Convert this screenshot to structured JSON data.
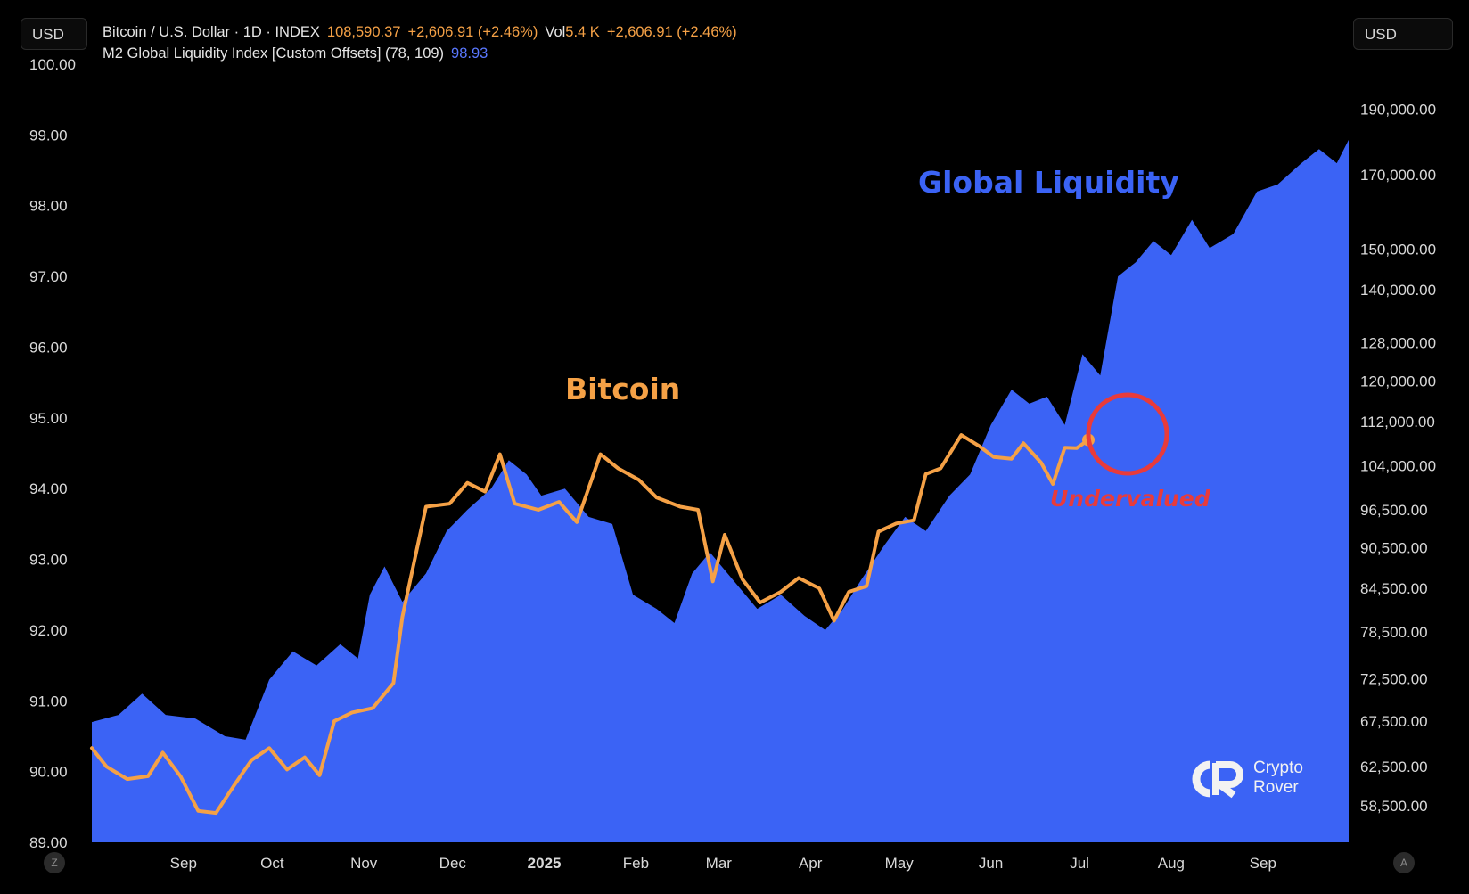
{
  "scale_buttons": {
    "left": "USD",
    "right": "USD"
  },
  "legend": {
    "btc": {
      "title": "Bitcoin / U.S. Dollar · 1D · INDEX",
      "price": "108,590.37",
      "change": "+2,606.91 (+2.46%)",
      "vol_label": "Vol",
      "vol_value": "5.4 K",
      "vol_change": "+2,606.91 (+2.46%)"
    },
    "m2": {
      "title": "M2 Global Liquidity Index [Custom Offsets] (78, 109)",
      "value": "98.93"
    }
  },
  "annotations": {
    "global_liquidity": "Global Liquidity",
    "bitcoin": "Bitcoin",
    "undervalued": "Undervalued"
  },
  "watermark": {
    "line1": "Crypto",
    "line2": "Rover"
  },
  "corner_buttons": {
    "zoom": "Z",
    "auto": "A"
  },
  "colors": {
    "background": "#000000",
    "liquidity_fill": "#3b63f5",
    "bitcoin_line": "#f5a146",
    "annotation_liquidity": "#3b63f5",
    "annotation_bitcoin": "#f5a146",
    "undervalued": "#e83b3b",
    "axis_text": "#d9d9d9"
  },
  "chart_data": {
    "type": "line",
    "x_axis": {
      "type": "date",
      "range": [
        "2024-08-01",
        "2025-09-30"
      ],
      "tick_labels": [
        {
          "date": "2024-09-01",
          "label": "Sep"
        },
        {
          "date": "2024-10-01",
          "label": "Oct"
        },
        {
          "date": "2024-11-01",
          "label": "Nov"
        },
        {
          "date": "2024-12-01",
          "label": "Dec"
        },
        {
          "date": "2025-01-01",
          "label": "2025",
          "bold": true
        },
        {
          "date": "2025-02-01",
          "label": "Feb"
        },
        {
          "date": "2025-03-01",
          "label": "Mar"
        },
        {
          "date": "2025-04-01",
          "label": "Apr"
        },
        {
          "date": "2025-05-01",
          "label": "May"
        },
        {
          "date": "2025-06-01",
          "label": "Jun"
        },
        {
          "date": "2025-07-01",
          "label": "Jul"
        },
        {
          "date": "2025-08-01",
          "label": "Aug"
        },
        {
          "date": "2025-09-01",
          "label": "Sep"
        }
      ]
    },
    "y_axis_left": {
      "label": "",
      "range": [
        89.0,
        100.0
      ],
      "ticks": [
        100,
        99,
        98,
        97,
        96,
        95,
        94,
        93,
        92,
        91,
        90,
        89
      ],
      "tick_labels": [
        "100.00",
        "99.00",
        "98.00",
        "97.00",
        "96.00",
        "95.00",
        "94.00",
        "93.00",
        "92.00",
        "91.00",
        "90.00",
        "89.00"
      ]
    },
    "y_axis_right": {
      "label": "",
      "scale": "log",
      "range": [
        55000,
        205000
      ],
      "ticks": [
        190000,
        170000,
        150000,
        140000,
        128000,
        120000,
        112000,
        104000,
        96500,
        90500,
        84500,
        78500,
        72500,
        67500,
        62500,
        58500
      ],
      "tick_labels": [
        "190,000.00",
        "170,000.00",
        "150,000.00",
        "140,000.00",
        "128,000.00",
        "120,000.00",
        "112,000.00",
        "104,000.00",
        "96,500.00",
        "90,500.00",
        "84,500.00",
        "78,500.00",
        "72,500.00",
        "67,500.00",
        "62,500.00",
        "58,500.00"
      ]
    },
    "grid": false,
    "legend_position": "top-left",
    "series": [
      {
        "name": "M2 Global Liquidity Index [Custom Offsets] (78, 109)",
        "type": "area",
        "axis": "left",
        "points": [
          [
            "2024-08-01",
            90.7
          ],
          [
            "2024-08-10",
            90.8
          ],
          [
            "2024-08-18",
            91.1
          ],
          [
            "2024-08-26",
            90.8
          ],
          [
            "2024-09-05",
            90.75
          ],
          [
            "2024-09-15",
            90.5
          ],
          [
            "2024-09-22",
            90.45
          ],
          [
            "2024-09-30",
            91.3
          ],
          [
            "2024-10-08",
            91.7
          ],
          [
            "2024-10-16",
            91.5
          ],
          [
            "2024-10-24",
            91.8
          ],
          [
            "2024-10-30",
            91.6
          ],
          [
            "2024-11-03",
            92.5
          ],
          [
            "2024-11-08",
            92.9
          ],
          [
            "2024-11-14",
            92.4
          ],
          [
            "2024-11-22",
            92.8
          ],
          [
            "2024-11-29",
            93.4
          ],
          [
            "2024-12-06",
            93.7
          ],
          [
            "2024-12-14",
            94.0
          ],
          [
            "2024-12-20",
            94.4
          ],
          [
            "2024-12-26",
            94.2
          ],
          [
            "2024-12-31",
            93.9
          ],
          [
            "2025-01-08",
            94.0
          ],
          [
            "2025-01-16",
            93.6
          ],
          [
            "2025-01-24",
            93.5
          ],
          [
            "2025-01-31",
            92.5
          ],
          [
            "2025-02-08",
            92.3
          ],
          [
            "2025-02-14",
            92.1
          ],
          [
            "2025-02-20",
            92.8
          ],
          [
            "2025-02-26",
            93.1
          ],
          [
            "2025-03-06",
            92.7
          ],
          [
            "2025-03-14",
            92.3
          ],
          [
            "2025-03-22",
            92.5
          ],
          [
            "2025-03-30",
            92.2
          ],
          [
            "2025-04-06",
            92.0
          ],
          [
            "2025-04-12",
            92.3
          ],
          [
            "2025-04-18",
            92.7
          ],
          [
            "2025-04-26",
            93.2
          ],
          [
            "2025-05-03",
            93.6
          ],
          [
            "2025-05-10",
            93.4
          ],
          [
            "2025-05-18",
            93.9
          ],
          [
            "2025-05-25",
            94.2
          ],
          [
            "2025-06-01",
            94.9
          ],
          [
            "2025-06-08",
            95.4
          ],
          [
            "2025-06-14",
            95.2
          ],
          [
            "2025-06-20",
            95.3
          ],
          [
            "2025-06-26",
            94.9
          ],
          [
            "2025-07-02",
            95.9
          ],
          [
            "2025-07-08",
            95.6
          ],
          [
            "2025-07-14",
            97.0
          ],
          [
            "2025-07-20",
            97.2
          ],
          [
            "2025-07-26",
            97.5
          ],
          [
            "2025-08-01",
            97.3
          ],
          [
            "2025-08-08",
            97.8
          ],
          [
            "2025-08-14",
            97.4
          ],
          [
            "2025-08-22",
            97.6
          ],
          [
            "2025-08-30",
            98.2
          ],
          [
            "2025-09-06",
            98.3
          ],
          [
            "2025-09-14",
            98.6
          ],
          [
            "2025-09-20",
            98.8
          ],
          [
            "2025-09-26",
            98.6
          ],
          [
            "2025-09-30",
            98.93
          ]
        ]
      },
      {
        "name": "Bitcoin / U.S. Dollar",
        "type": "line",
        "axis": "right",
        "points": [
          [
            "2024-08-01",
            64500
          ],
          [
            "2024-08-06",
            62500
          ],
          [
            "2024-08-13",
            61200
          ],
          [
            "2024-08-20",
            61500
          ],
          [
            "2024-08-25",
            64000
          ],
          [
            "2024-08-31",
            61500
          ],
          [
            "2024-09-06",
            58000
          ],
          [
            "2024-09-12",
            57800
          ],
          [
            "2024-09-18",
            60500
          ],
          [
            "2024-09-24",
            63200
          ],
          [
            "2024-09-30",
            64500
          ],
          [
            "2024-10-06",
            62200
          ],
          [
            "2024-10-12",
            63500
          ],
          [
            "2024-10-17",
            61600
          ],
          [
            "2024-10-22",
            67500
          ],
          [
            "2024-10-28",
            68500
          ],
          [
            "2024-11-04",
            69000
          ],
          [
            "2024-11-11",
            72000
          ],
          [
            "2024-11-14",
            80500
          ],
          [
            "2024-11-22",
            97000
          ],
          [
            "2024-11-30",
            97500
          ],
          [
            "2024-12-06",
            101000
          ],
          [
            "2024-12-12",
            99500
          ],
          [
            "2024-12-17",
            106000
          ],
          [
            "2024-12-22",
            97500
          ],
          [
            "2024-12-30",
            96500
          ],
          [
            "2025-01-06",
            97800
          ],
          [
            "2025-01-12",
            94500
          ],
          [
            "2025-01-20",
            106000
          ],
          [
            "2025-01-26",
            103500
          ],
          [
            "2025-02-02",
            101500
          ],
          [
            "2025-02-08",
            98500
          ],
          [
            "2025-02-16",
            97000
          ],
          [
            "2025-02-22",
            96500
          ],
          [
            "2025-02-27",
            85500
          ],
          [
            "2025-03-03",
            92500
          ],
          [
            "2025-03-09",
            85800
          ],
          [
            "2025-03-15",
            82500
          ],
          [
            "2025-03-22",
            84000
          ],
          [
            "2025-03-28",
            86000
          ],
          [
            "2025-04-04",
            84500
          ],
          [
            "2025-04-09",
            80000
          ],
          [
            "2025-04-14",
            84000
          ],
          [
            "2025-04-20",
            84800
          ],
          [
            "2025-04-24",
            93000
          ],
          [
            "2025-04-30",
            94300
          ],
          [
            "2025-05-06",
            94800
          ],
          [
            "2025-05-10",
            102500
          ],
          [
            "2025-05-15",
            103500
          ],
          [
            "2025-05-22",
            109500
          ],
          [
            "2025-05-28",
            107500
          ],
          [
            "2025-06-02",
            105500
          ],
          [
            "2025-06-08",
            105200
          ],
          [
            "2025-06-12",
            108000
          ],
          [
            "2025-06-18",
            104500
          ],
          [
            "2025-06-22",
            100800
          ],
          [
            "2025-06-26",
            107200
          ],
          [
            "2025-06-30",
            107100
          ],
          [
            "2025-07-04",
            108590
          ]
        ],
        "last_point_marker": true
      }
    ],
    "annotations": [
      {
        "text": "Global Liquidity",
        "color": "#3b63f5"
      },
      {
        "text": "Bitcoin",
        "color": "#f5a146"
      },
      {
        "text": "Undervalued",
        "color": "#e83b3b",
        "circle_around": "2025-07-04"
      }
    ]
  }
}
